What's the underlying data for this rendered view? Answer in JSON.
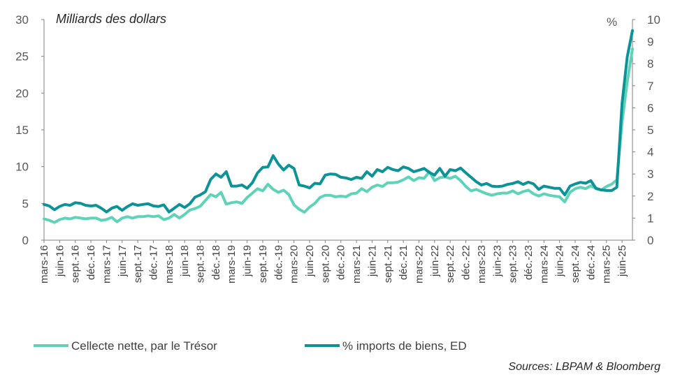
{
  "chart_data": {
    "type": "line",
    "title": "Milliards des dollars",
    "right_axis_label": "%",
    "source": "Sources: LBPAM & Bloomberg",
    "colors": {
      "collecte": "#5fd3b9",
      "imports": "#0b9397",
      "axis": "#7f7f7f",
      "text": "#595959"
    },
    "grid": false,
    "legend_position": "bottom-left",
    "ylim_left": [
      0,
      30
    ],
    "ylim_right": [
      0,
      10
    ],
    "yticks_left": [
      "0",
      "5",
      "10",
      "15",
      "20",
      "25",
      "30"
    ],
    "yticks_right": [
      "0",
      "1",
      "2",
      "3",
      "4",
      "5",
      "6",
      "7",
      "8",
      "9",
      "10"
    ],
    "x_tick_labels": [
      "mars-16",
      "juin-16",
      "sept.-16",
      "déc.-16",
      "mars-17",
      "juin-17",
      "sept.-17",
      "déc.-17",
      "mars-18",
      "juin-18",
      "sept.-18",
      "déc.-18",
      "mars-19",
      "juin-19",
      "sept.-19",
      "déc.-19",
      "mars-20",
      "juin-20",
      "sept.-20",
      "déc.-20",
      "mars-21",
      "juin-21",
      "sept.-21",
      "déc.-21",
      "mars-22",
      "juin-22",
      "sept.-22",
      "déc.-22",
      "mars-23",
      "juin-23",
      "sept.-23",
      "déc.-23",
      "mars-24",
      "juin-24",
      "sept.-24",
      "déc.-24",
      "mars-25",
      "juin-25"
    ],
    "series": [
      {
        "name": "Cellecte nette, par le Trésor",
        "axis": "left",
        "values": [
          2.9,
          2.7,
          2.4,
          2.8,
          3.0,
          2.9,
          3.1,
          3.0,
          2.9,
          3.0,
          3.0,
          2.7,
          2.8,
          3.1,
          2.5,
          3.0,
          3.2,
          3.0,
          3.2,
          3.2,
          3.3,
          3.2,
          3.3,
          2.8,
          3.0,
          3.5,
          3.0,
          3.5,
          4.1,
          4.3,
          4.6,
          5.4,
          6.2,
          5.9,
          6.5,
          4.9,
          5.1,
          5.2,
          5.0,
          5.8,
          6.4,
          7.0,
          6.7,
          7.6,
          6.9,
          6.5,
          6.8,
          6.2,
          4.8,
          4.2,
          3.8,
          4.5,
          5.0,
          5.8,
          6.1,
          6.1,
          5.9,
          6.0,
          5.9,
          6.3,
          6.4,
          7.0,
          6.6,
          7.2,
          7.5,
          7.3,
          7.8,
          7.8,
          7.9,
          8.2,
          8.6,
          8.1,
          8.5,
          8.4,
          9.3,
          8.1,
          8.5,
          8.6,
          8.4,
          8.7,
          8.1,
          7.3,
          6.7,
          6.9,
          6.6,
          6.3,
          6.1,
          6.3,
          6.4,
          6.4,
          6.7,
          6.3,
          6.6,
          6.8,
          6.3,
          6.0,
          6.3,
          6.1,
          6.0,
          5.9,
          5.2,
          6.5,
          7.0,
          7.2,
          7.0,
          7.4,
          7.0,
          6.8,
          7.3,
          7.6,
          8.2,
          16.0,
          21.5,
          26.0
        ]
      },
      {
        "name": "% imports de biens, ED",
        "axis": "right",
        "values": [
          1.62,
          1.55,
          1.38,
          1.53,
          1.62,
          1.58,
          1.7,
          1.67,
          1.58,
          1.55,
          1.58,
          1.45,
          1.28,
          1.45,
          1.53,
          1.35,
          1.52,
          1.65,
          1.58,
          1.62,
          1.65,
          1.55,
          1.53,
          1.6,
          1.28,
          1.45,
          1.62,
          1.48,
          1.65,
          1.95,
          2.05,
          2.2,
          2.75,
          3.0,
          2.85,
          3.1,
          2.45,
          2.45,
          2.5,
          2.35,
          2.6,
          3.05,
          3.3,
          3.32,
          3.83,
          3.45,
          3.18,
          3.4,
          3.25,
          2.5,
          2.45,
          2.37,
          2.58,
          2.55,
          2.95,
          3.0,
          2.98,
          2.85,
          2.82,
          2.75,
          2.85,
          2.8,
          3.1,
          2.9,
          3.2,
          3.1,
          3.3,
          3.2,
          3.15,
          3.32,
          3.25,
          3.1,
          3.17,
          3.25,
          3.07,
          2.95,
          3.25,
          2.9,
          3.2,
          3.15,
          3.27,
          3.05,
          2.85,
          2.65,
          2.5,
          2.57,
          2.45,
          2.43,
          2.45,
          2.53,
          2.57,
          2.65,
          2.53,
          2.63,
          2.55,
          2.3,
          2.45,
          2.4,
          2.35,
          2.35,
          2.05,
          2.45,
          2.55,
          2.62,
          2.58,
          2.7,
          2.35,
          2.28,
          2.25,
          2.25,
          2.4,
          6.2,
          8.3,
          9.5
        ]
      }
    ]
  }
}
